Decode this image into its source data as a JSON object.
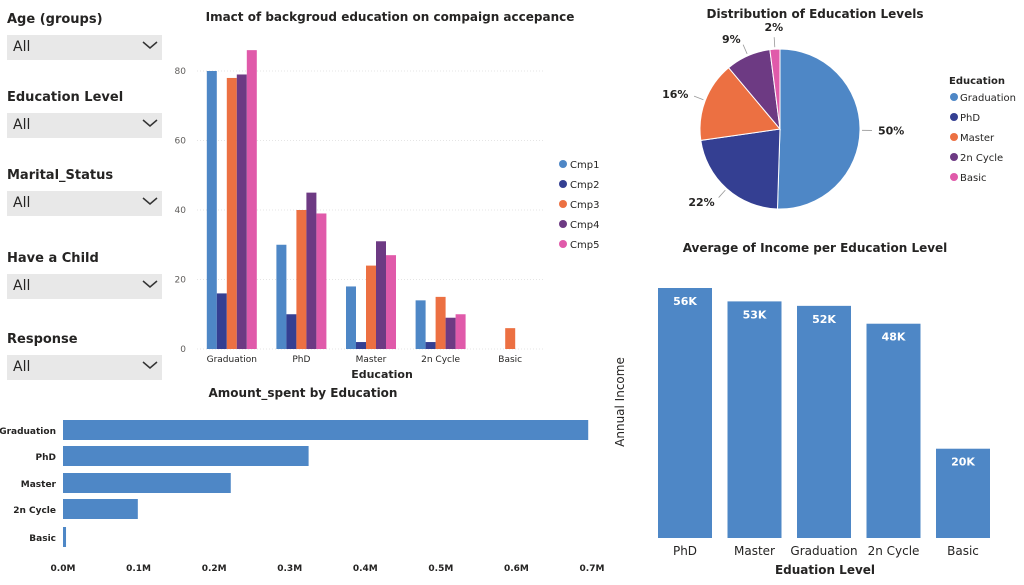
{
  "filters": [
    {
      "label": "Age (groups)",
      "value": "All"
    },
    {
      "label": "Education Level",
      "value": "All"
    },
    {
      "label": "Marital_Status",
      "value": "All"
    },
    {
      "label": "Have a Child",
      "value": "All"
    },
    {
      "label": "Response",
      "value": "All"
    }
  ],
  "colors": {
    "cmp1": "#4e87c6",
    "cmp2": "#343f92",
    "cmp3": "#ec7042",
    "cmp4": "#6d3a83",
    "cmp5": "#e05aaa",
    "bar": "#4e87c6"
  },
  "chart_data": [
    {
      "type": "bar",
      "title": "Imact of backgroud education on compaign accepance",
      "xlabel": "Education",
      "ylabel": "",
      "categories": [
        "Graduation",
        "PhD",
        "Master",
        "2n Cycle",
        "Basic"
      ],
      "series": [
        {
          "name": "Cmp1",
          "values": [
            80,
            30,
            18,
            14,
            0
          ]
        },
        {
          "name": "Cmp2",
          "values": [
            16,
            10,
            2,
            2,
            0
          ]
        },
        {
          "name": "Cmp3",
          "values": [
            78,
            40,
            24,
            15,
            6
          ]
        },
        {
          "name": "Cmp4",
          "values": [
            79,
            45,
            31,
            9,
            0
          ]
        },
        {
          "name": "Cmp5",
          "values": [
            86,
            39,
            27,
            10,
            0
          ]
        }
      ],
      "ylim": [
        0,
        90
      ],
      "yticks": [
        0,
        20,
        40,
        60,
        80
      ],
      "legend": "right"
    },
    {
      "type": "pie",
      "title": "Distribution of Education Levels",
      "legend_title": "Education",
      "categories": [
        "Graduation",
        "PhD",
        "Master",
        "2n Cycle",
        "Basic"
      ],
      "values": [
        50,
        22,
        16,
        9,
        2
      ],
      "labels": [
        "50%",
        "22%",
        "16%",
        "9%",
        "2%"
      ],
      "legend": "right"
    },
    {
      "type": "bar",
      "orientation": "horizontal",
      "title": "Amount_spent by Education",
      "categories": [
        "Graduation",
        "PhD",
        "Master",
        "2n Cycle",
        "Basic"
      ],
      "values": [
        0.695,
        0.325,
        0.222,
        0.099,
        0.004
      ],
      "xlim": [
        0,
        0.7
      ],
      "xticks": [
        0,
        0.1,
        0.2,
        0.3,
        0.4,
        0.5,
        0.6,
        0.7
      ],
      "xtick_labels": [
        "0.0M",
        "0.1M",
        "0.2M",
        "0.3M",
        "0.4M",
        "0.5M",
        "0.6M",
        "0.7M"
      ]
    },
    {
      "type": "bar",
      "title": "Average of Income per Education Level",
      "xlabel": "Eduation Level",
      "ylabel": "Annual Income",
      "categories": [
        "PhD",
        "Master",
        "Graduation",
        "2n Cycle",
        "Basic"
      ],
      "values": [
        56,
        53,
        52,
        48,
        20
      ],
      "data_labels": [
        "56K",
        "53K",
        "52K",
        "48K",
        "20K"
      ],
      "ylim": [
        0,
        56
      ]
    }
  ]
}
